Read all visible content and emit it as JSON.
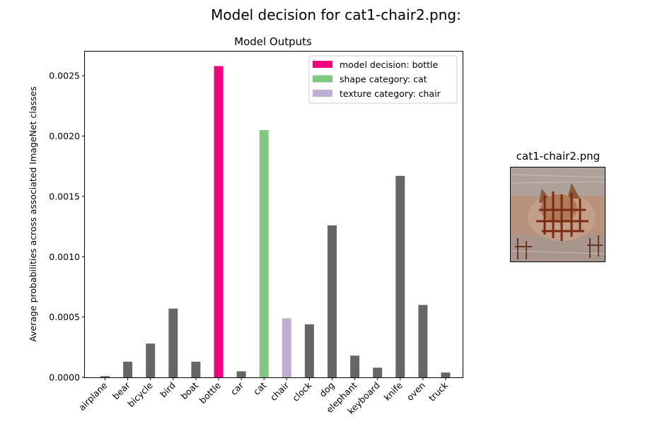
{
  "figure": {
    "suptitle": "Model decision for cat1-chair2.png:",
    "image_title": "cat1-chair2.png"
  },
  "chart_data": {
    "type": "bar",
    "title": "Model Outputs",
    "xlabel": "",
    "ylabel": "Average probabilities across associated ImageNet classes",
    "ylim": [
      0,
      0.0027
    ],
    "yticks": [
      "0.0000",
      "0.0005",
      "0.0010",
      "0.0015",
      "0.0020",
      "0.0025"
    ],
    "grid": false,
    "legend_position": "top-right",
    "categories": [
      "airplane",
      "bear",
      "bicycle",
      "bird",
      "boat",
      "bottle",
      "car",
      "cat",
      "chair",
      "clock",
      "dog",
      "elephant",
      "keyboard",
      "knife",
      "oven",
      "truck"
    ],
    "values": [
      1e-05,
      0.00013,
      0.00028,
      0.00057,
      0.00013,
      0.00258,
      5e-05,
      0.00205,
      0.00049,
      0.00044,
      0.00126,
      0.00018,
      8e-05,
      0.00167,
      0.0006,
      4e-05
    ],
    "colors": [
      "#666666",
      "#666666",
      "#666666",
      "#666666",
      "#666666",
      "#f0027f",
      "#666666",
      "#7fc97f",
      "#beaed4",
      "#666666",
      "#666666",
      "#666666",
      "#666666",
      "#666666",
      "#666666",
      "#666666"
    ],
    "legend": [
      {
        "label": "model decision: bottle",
        "color": "#f0027f"
      },
      {
        "label": "shape category: cat",
        "color": "#7fc97f"
      },
      {
        "label": "texture category: chair",
        "color": "#beaed4"
      }
    ]
  }
}
